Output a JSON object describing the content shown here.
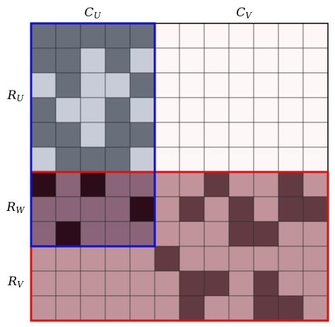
{
  "column_labels": [
    {
      "main": "C",
      "sub": "U"
    },
    {
      "main": "C",
      "sub": "V"
    }
  ],
  "row_labels": [
    {
      "main": "R",
      "sub": "U"
    },
    {
      "main": "R",
      "sub": "W"
    },
    {
      "main": "R",
      "sub": "V"
    }
  ]
}
